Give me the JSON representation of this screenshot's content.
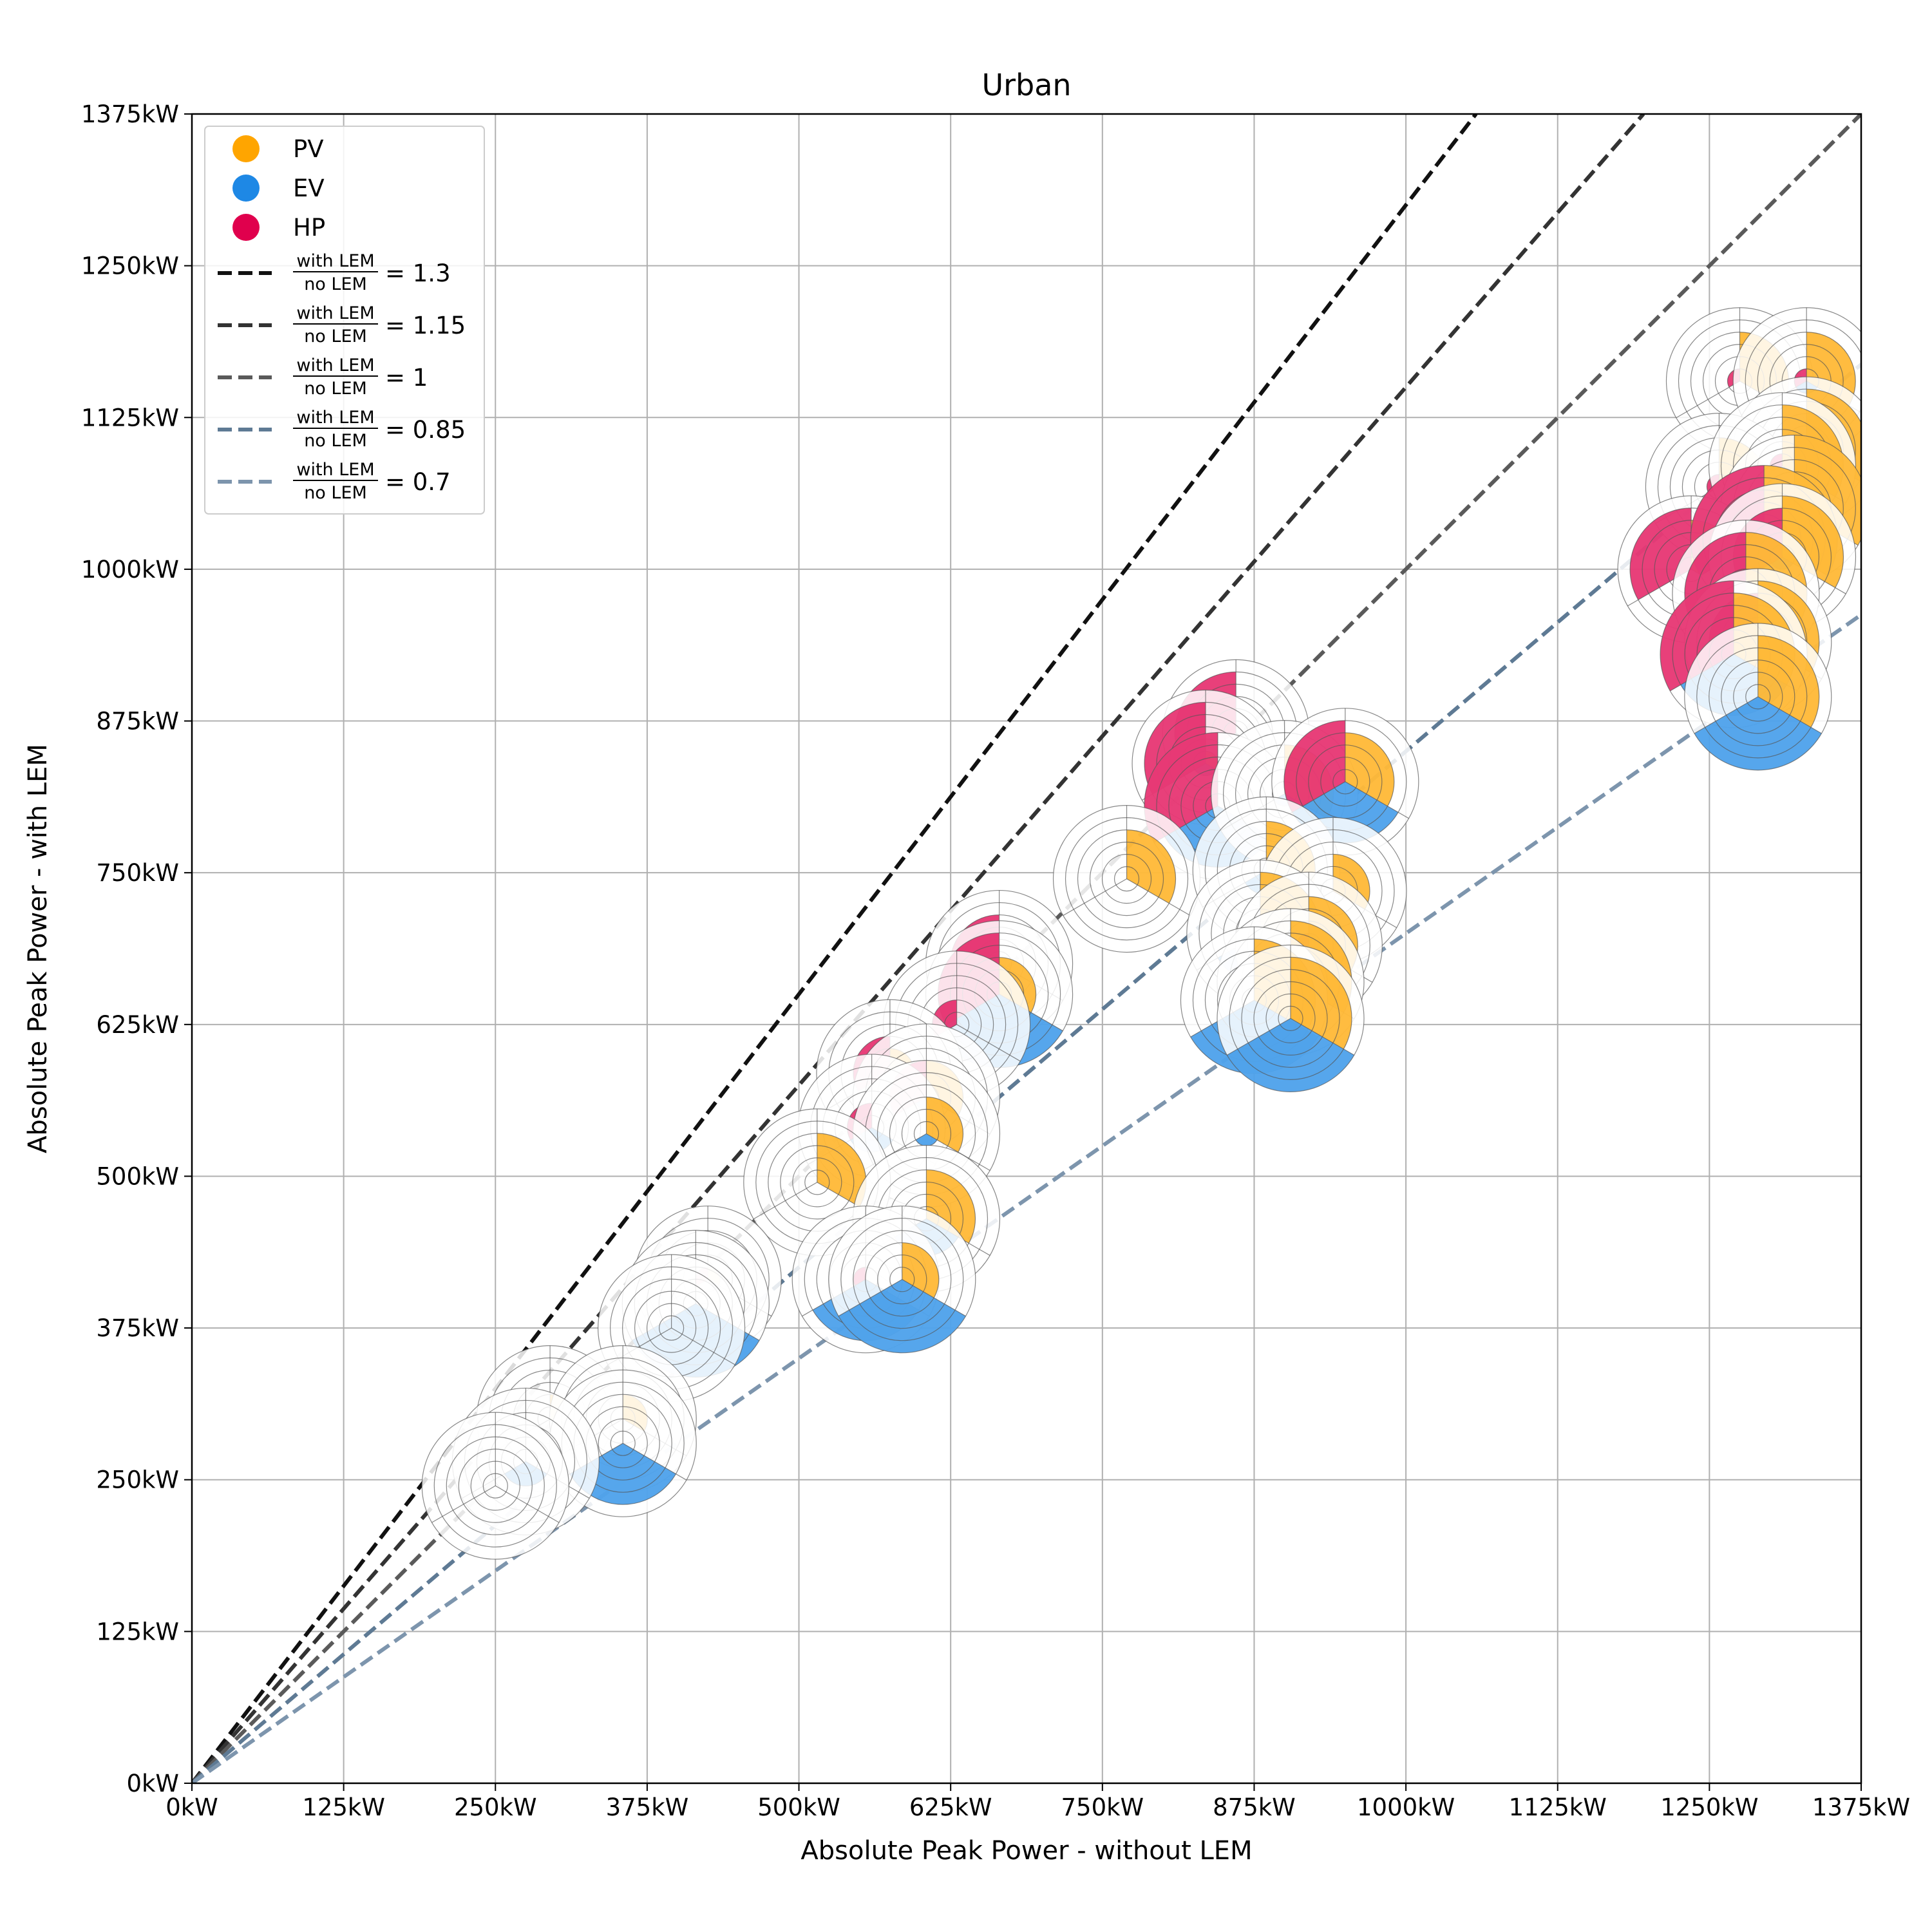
{
  "chart_data": {
    "type": "scatter",
    "title": "Urban",
    "xlabel": "Absolute Peak Power - without LEM",
    "ylabel": "Absolute Peak Power - with LEM",
    "xlim": [
      0,
      1375
    ],
    "ylim": [
      0,
      1375
    ],
    "xticks": [
      "0kW",
      "125kW",
      "250kW",
      "375kW",
      "500kW",
      "625kW",
      "750kW",
      "875kW",
      "1000kW",
      "1125kW",
      "1250kW",
      "1375kW"
    ],
    "yticks": [
      "0kW",
      "125kW",
      "250kW",
      "375kW",
      "500kW",
      "625kW",
      "750kW",
      "875kW",
      "1000kW",
      "1125kW",
      "1250kW",
      "1375kW"
    ],
    "grid": true,
    "legend_position": "upper-left",
    "colors": {
      "PV": "#ffa500",
      "EV": "#1e88e5",
      "HP": "#e0004d"
    },
    "legend": {
      "markers": [
        "PV",
        "EV",
        "HP"
      ],
      "frac_num": "with LEM",
      "frac_den": "no LEM"
    },
    "ratio_lines": [
      {
        "ratio": 1.3,
        "label": "= 1.3",
        "color": "#111111"
      },
      {
        "ratio": 1.15,
        "label": "= 1.15",
        "color": "#333333"
      },
      {
        "ratio": 1.0,
        "label": "= 1",
        "color": "#5a5a5a"
      },
      {
        "ratio": 0.85,
        "label": "= 0.85",
        "color": "#5e7a94"
      },
      {
        "ratio": 0.7,
        "label": "= 0.7",
        "color": "#7d95ad"
      }
    ],
    "points": [
      {
        "x": 1275,
        "y": 1155,
        "pv": 4,
        "ev": 0,
        "hp": 1
      },
      {
        "x": 1330,
        "y": 1155,
        "pv": 4,
        "ev": 1,
        "hp": 1
      },
      {
        "x": 1330,
        "y": 1098,
        "pv": 5,
        "ev": 0,
        "hp": 0
      },
      {
        "x": 1258,
        "y": 1068,
        "pv": 4,
        "ev": 0,
        "hp": 1
      },
      {
        "x": 1310,
        "y": 1085,
        "pv": 5,
        "ev": 0,
        "hp": 1
      },
      {
        "x": 1320,
        "y": 1050,
        "pv": 6,
        "ev": 0,
        "hp": 0
      },
      {
        "x": 1235,
        "y": 1000,
        "pv": 4,
        "ev": 0,
        "hp": 5
      },
      {
        "x": 1295,
        "y": 1025,
        "pv": 6,
        "ev": 0,
        "hp": 6
      },
      {
        "x": 1310,
        "y": 1010,
        "pv": 5,
        "ev": 1,
        "hp": 4
      },
      {
        "x": 1280,
        "y": 980,
        "pv": 5,
        "ev": 0,
        "hp": 5
      },
      {
        "x": 1290,
        "y": 940,
        "pv": 5,
        "ev": 0,
        "hp": 4
      },
      {
        "x": 1270,
        "y": 930,
        "pv": 5,
        "ev": 5,
        "hp": 6
      },
      {
        "x": 1290,
        "y": 895,
        "pv": 5,
        "ev": 6,
        "hp": 0
      },
      {
        "x": 860,
        "y": 865,
        "pv": 0,
        "ev": 0,
        "hp": 5
      },
      {
        "x": 835,
        "y": 840,
        "pv": 1,
        "ev": 1,
        "hp": 5
      },
      {
        "x": 845,
        "y": 805,
        "pv": 0,
        "ev": 5,
        "hp": 6
      },
      {
        "x": 900,
        "y": 815,
        "pv": 4,
        "ev": 1,
        "hp": 0
      },
      {
        "x": 950,
        "y": 825,
        "pv": 4,
        "ev": 5,
        "hp": 5
      },
      {
        "x": 770,
        "y": 745,
        "pv": 4,
        "ev": 0,
        "hp": 0
      },
      {
        "x": 885,
        "y": 752,
        "pv": 4,
        "ev": 2,
        "hp": 0
      },
      {
        "x": 940,
        "y": 735,
        "pv": 3,
        "ev": 0,
        "hp": 0
      },
      {
        "x": 880,
        "y": 700,
        "pv": 5,
        "ev": 4,
        "hp": 0
      },
      {
        "x": 920,
        "y": 690,
        "pv": 4,
        "ev": 0,
        "hp": 1
      },
      {
        "x": 905,
        "y": 660,
        "pv": 5,
        "ev": 0,
        "hp": 0
      },
      {
        "x": 875,
        "y": 645,
        "pv": 5,
        "ev": 6,
        "hp": 0
      },
      {
        "x": 905,
        "y": 630,
        "pv": 5,
        "ev": 6,
        "hp": 0
      },
      {
        "x": 665,
        "y": 675,
        "pv": 0,
        "ev": 0,
        "hp": 4
      },
      {
        "x": 665,
        "y": 650,
        "pv": 3,
        "ev": 6,
        "hp": 5
      },
      {
        "x": 630,
        "y": 625,
        "pv": 0,
        "ev": 0,
        "hp": 2
      },
      {
        "x": 575,
        "y": 585,
        "pv": 2,
        "ev": 0,
        "hp": 3
      },
      {
        "x": 605,
        "y": 565,
        "pv": 3,
        "ev": 1,
        "hp": 3
      },
      {
        "x": 560,
        "y": 540,
        "pv": 0,
        "ev": 2,
        "hp": 2
      },
      {
        "x": 605,
        "y": 535,
        "pv": 3,
        "ev": 1,
        "hp": 0
      },
      {
        "x": 515,
        "y": 495,
        "pv": 4,
        "ev": 0,
        "hp": 0
      },
      {
        "x": 605,
        "y": 465,
        "pv": 4,
        "ev": 3,
        "hp": 0
      },
      {
        "x": 555,
        "y": 415,
        "pv": 0,
        "ev": 5,
        "hp": 1
      },
      {
        "x": 585,
        "y": 415,
        "pv": 3,
        "ev": 6,
        "hp": 0
      },
      {
        "x": 425,
        "y": 415,
        "pv": 1,
        "ev": 0,
        "hp": 1
      },
      {
        "x": 415,
        "y": 395,
        "pv": 0,
        "ev": 6,
        "hp": 0
      },
      {
        "x": 395,
        "y": 375,
        "pv": 0,
        "ev": 0,
        "hp": 0
      },
      {
        "x": 295,
        "y": 300,
        "pv": 2,
        "ev": 0,
        "hp": 0
      },
      {
        "x": 355,
        "y": 300,
        "pv": 2,
        "ev": 0,
        "hp": 0
      },
      {
        "x": 355,
        "y": 280,
        "pv": 0,
        "ev": 5,
        "hp": 0
      },
      {
        "x": 275,
        "y": 265,
        "pv": 0,
        "ev": 2,
        "hp": 0
      },
      {
        "x": 250,
        "y": 245,
        "pv": 0,
        "ev": 0,
        "hp": 0
      }
    ]
  }
}
